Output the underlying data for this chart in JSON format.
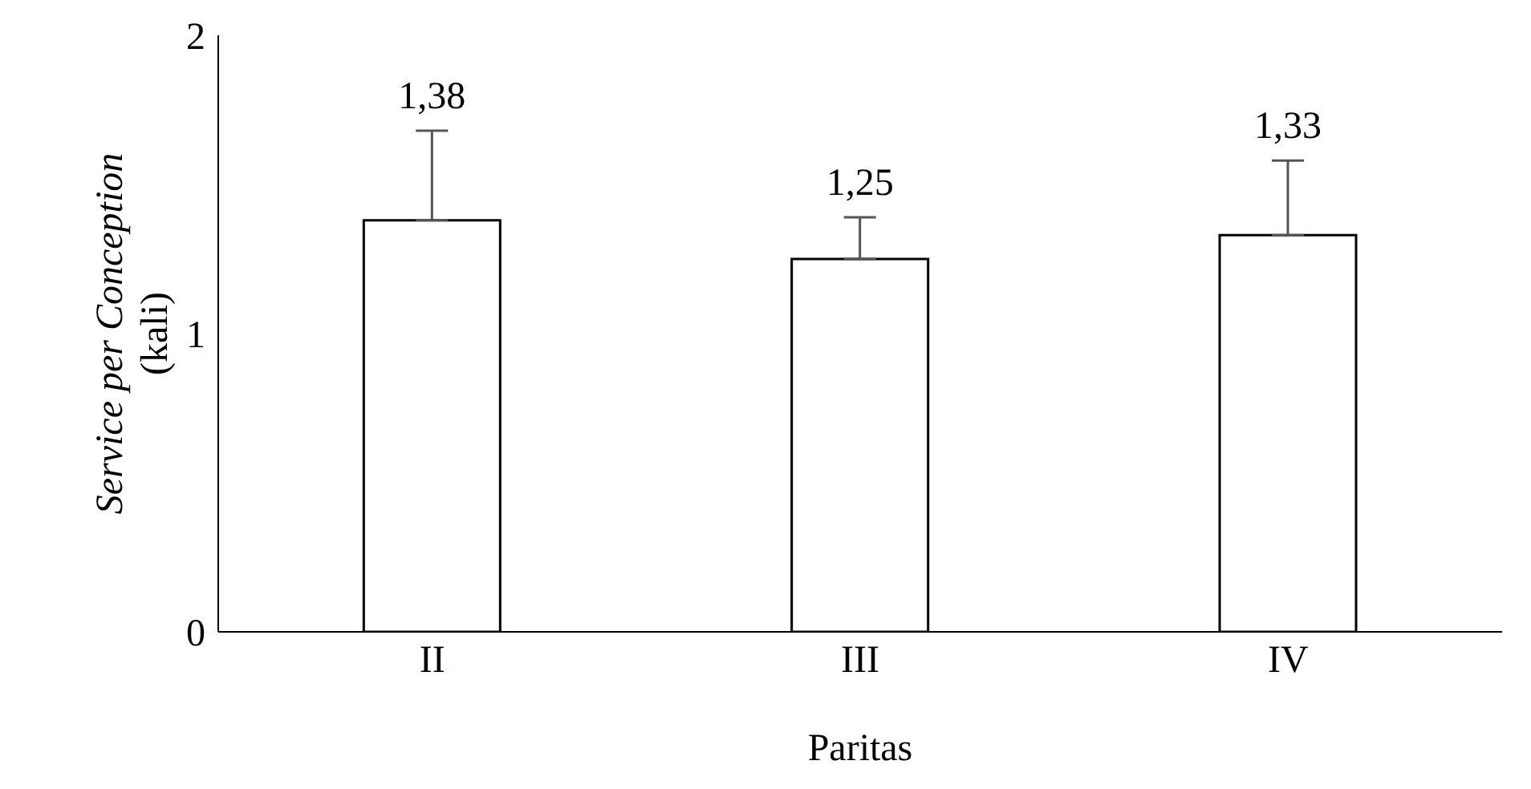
{
  "chart_data": {
    "type": "bar",
    "xlabel": "Paritas",
    "ylabel": "Service per Conception\n(kali)",
    "categories": [
      "II",
      "III",
      "IV"
    ],
    "values": [
      1.38,
      1.25,
      1.33
    ],
    "errors": [
      [
        1.38,
        1.68
      ],
      [
        1.25,
        1.39
      ],
      [
        1.33,
        1.58
      ]
    ],
    "value_labels": [
      "1,38",
      "1,25",
      "1,33"
    ],
    "color": "#ffffff",
    "ylim": [
      0,
      2
    ],
    "yticks": [
      0,
      1,
      2
    ]
  }
}
